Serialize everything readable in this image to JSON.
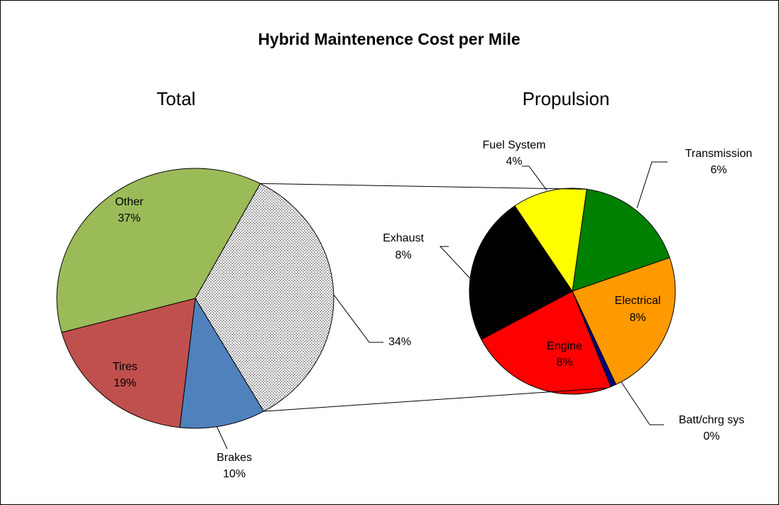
{
  "title": "Hybrid Maintenence Cost per Mile",
  "chart_data": [
    {
      "type": "pie",
      "title": "Total",
      "categories": [
        null,
        "Brakes",
        "Tires",
        "Other"
      ],
      "values": [
        34,
        10,
        19,
        37
      ],
      "value_labels": [
        "34%",
        "10%",
        "19%",
        "37%"
      ],
      "colors": [
        "#a6a6a6",
        "#4f81bd",
        "#c0504d",
        "#9bbb59"
      ]
    },
    {
      "type": "pie",
      "title": "Propulsion",
      "categories": [
        "Transmission",
        "Electrical",
        "Batt/chrg sys",
        "Engine",
        "Exhaust",
        "Fuel System"
      ],
      "values": [
        6,
        8,
        0.3,
        8,
        8,
        4
      ],
      "value_labels": [
        "6%",
        "8%",
        "0%",
        "8%",
        "8%",
        "4%"
      ],
      "colors": [
        "#008000",
        "#ff9900",
        "#000080",
        "#ff0000",
        "#000000",
        "#ffff00"
      ]
    }
  ]
}
